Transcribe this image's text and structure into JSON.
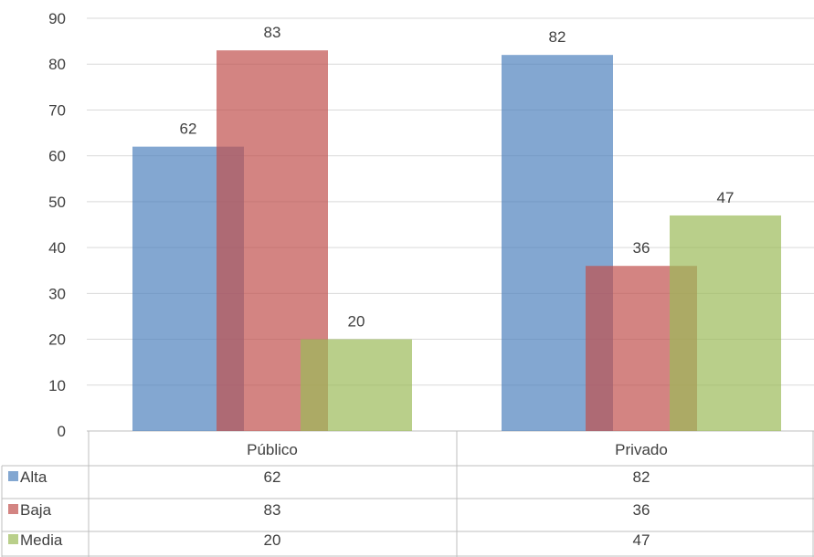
{
  "chart_data": {
    "type": "bar",
    "categories": [
      "Público",
      "Privado"
    ],
    "series": [
      {
        "name": "Alta",
        "values": [
          62,
          82
        ],
        "color": "#4f81bd"
      },
      {
        "name": "Baja",
        "values": [
          83,
          36
        ],
        "color": "#c0504d"
      },
      {
        "name": "Media",
        "values": [
          20,
          47
        ],
        "color": "#9bbb59"
      }
    ],
    "ylim": [
      0,
      90
    ],
    "yticks": [
      0,
      10,
      20,
      30,
      40,
      50,
      60,
      70,
      80,
      90
    ],
    "grid": true,
    "legend": "data-table",
    "data_table": true
  }
}
